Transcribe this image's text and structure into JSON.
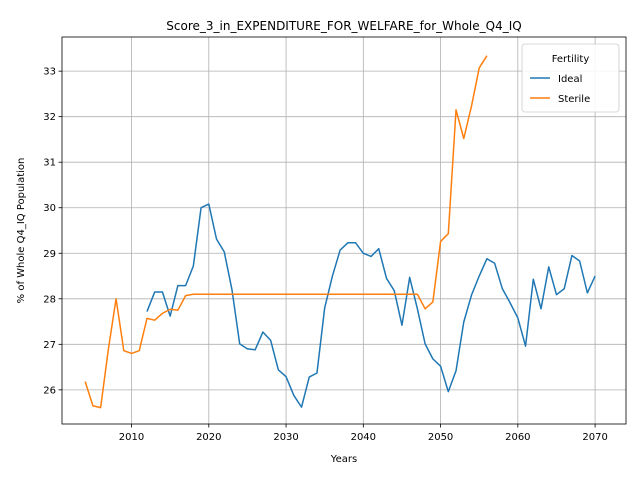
{
  "chart_data": {
    "type": "line",
    "title": "Score_3_in_EXPENDITURE_FOR_WELFARE_for_Whole_Q4_IQ",
    "xlabel": "Years",
    "ylabel": "% of Whole Q4_IQ Population",
    "xlim": [
      2001,
      2074
    ],
    "ylim": [
      25.25,
      33.75
    ],
    "xticks": [
      2010,
      2020,
      2030,
      2040,
      2050,
      2060,
      2070
    ],
    "yticks": [
      26,
      27,
      28,
      29,
      30,
      31,
      32,
      33
    ],
    "grid": true,
    "legend": {
      "title": "Fertility",
      "placement": "top-right"
    },
    "series": [
      {
        "name": "Ideal",
        "color": "#1f77b4",
        "x": [
          2012,
          2013,
          2014,
          2015,
          2016,
          2017,
          2018,
          2019,
          2020,
          2021,
          2022,
          2023,
          2024,
          2025,
          2026,
          2027,
          2028,
          2029,
          2030,
          2031,
          2032,
          2033,
          2034,
          2035,
          2036,
          2037,
          2038,
          2039,
          2040,
          2041,
          2042,
          2043,
          2044,
          2045,
          2046,
          2047,
          2048,
          2049,
          2050,
          2051,
          2052,
          2053,
          2054,
          2055,
          2056,
          2057,
          2058,
          2059,
          2060,
          2061,
          2062,
          2063,
          2064,
          2065,
          2066,
          2067,
          2068,
          2069,
          2070
        ],
        "y": [
          27.72,
          28.15,
          28.15,
          27.62,
          28.29,
          28.29,
          28.72,
          30.0,
          30.08,
          29.31,
          29.03,
          28.2,
          27.01,
          26.9,
          26.88,
          27.27,
          27.09,
          26.44,
          26.29,
          25.88,
          25.62,
          26.28,
          26.37,
          27.8,
          28.5,
          29.07,
          29.23,
          29.23,
          29.0,
          28.93,
          29.1,
          28.45,
          28.18,
          27.42,
          28.47,
          27.78,
          27.01,
          26.68,
          26.52,
          25.96,
          26.42,
          27.49,
          28.08,
          28.5,
          28.88,
          28.78,
          28.22,
          27.91,
          27.58,
          26.96,
          28.43,
          27.78,
          28.7,
          28.09,
          28.22,
          28.95,
          28.83,
          28.13,
          28.5
        ]
      },
      {
        "name": "Sterile",
        "color": "#ff7f0e",
        "x": [
          2004,
          2005,
          2006,
          2007,
          2008,
          2009,
          2010,
          2011,
          2012,
          2013,
          2014,
          2015,
          2016,
          2017,
          2018,
          2019,
          2020,
          2021,
          2022,
          2023,
          2024,
          2025,
          2026,
          2027,
          2028,
          2029,
          2030,
          2031,
          2032,
          2033,
          2034,
          2035,
          2036,
          2037,
          2038,
          2039,
          2040,
          2041,
          2042,
          2043,
          2044,
          2045,
          2046,
          2047,
          2048,
          2049,
          2050,
          2051,
          2052,
          2053,
          2054,
          2055,
          2056
        ],
        "y": [
          26.18,
          25.65,
          25.61,
          26.89,
          28.0,
          26.86,
          26.8,
          26.86,
          27.57,
          27.53,
          27.68,
          27.77,
          27.75,
          28.07,
          28.1,
          28.1,
          28.1,
          28.1,
          28.1,
          28.1,
          28.1,
          28.1,
          28.1,
          28.1,
          28.1,
          28.1,
          28.1,
          28.1,
          28.1,
          28.1,
          28.1,
          28.1,
          28.1,
          28.1,
          28.1,
          28.1,
          28.1,
          28.1,
          28.1,
          28.1,
          28.1,
          28.1,
          28.1,
          28.1,
          27.78,
          27.93,
          29.26,
          29.43,
          32.15,
          31.52,
          32.23,
          33.07,
          33.34
        ]
      }
    ]
  }
}
